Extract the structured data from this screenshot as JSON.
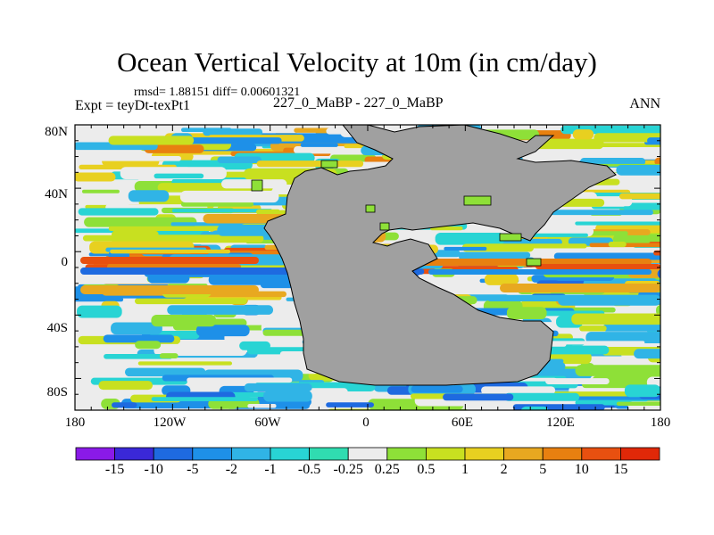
{
  "title": "Ocean Vertical Velocity at 10m (in cm/day)",
  "stats": "rmsd= 1.88151 diff= 0.00601321",
  "experiment": "Expt = teyDt-texPt1",
  "comparison": "227_0_MaBP - 227_0_MaBP",
  "season": "ANN",
  "lat_labels": [
    "80N",
    "40N",
    "0",
    "40S",
    "80S"
  ],
  "lon_labels": [
    "180",
    "120W",
    "60W",
    "0",
    "60E",
    "120E",
    "180"
  ],
  "colorbar": {
    "labels": [
      "-15",
      "-10",
      "-5",
      "-2",
      "-1",
      "-0.5",
      "-0.25",
      "0.25",
      "0.5",
      "1",
      "2",
      "5",
      "10",
      "15"
    ],
    "colors": [
      "#8a1ae8",
      "#3a28d8",
      "#1e6ae0",
      "#1e90e8",
      "#30b4e6",
      "#28d4d4",
      "#30dcb0",
      "#ececec",
      "#8ee038",
      "#c8e020",
      "#e8d020",
      "#e8a820",
      "#e88010",
      "#e85010",
      "#e02808"
    ]
  },
  "land_color": "#a0a0a0"
}
